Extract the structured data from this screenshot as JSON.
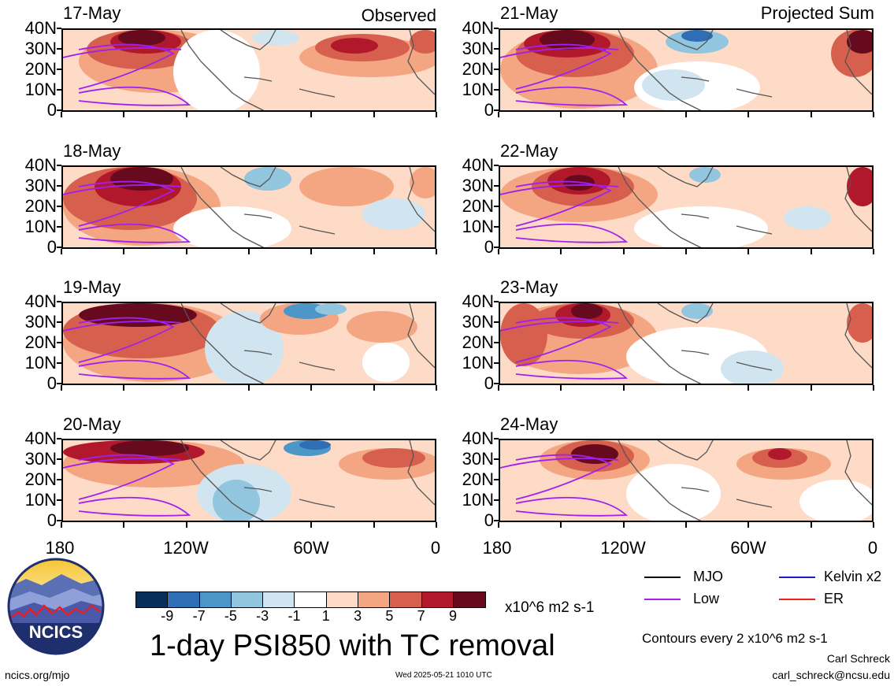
{
  "title": "1-day PSI850 with TC removal",
  "columns": [
    {
      "title": "Observed",
      "dates": [
        "17-May",
        "18-May",
        "19-May",
        "20-May"
      ]
    },
    {
      "title": "Projected Sum",
      "dates": [
        "21-May",
        "22-May",
        "23-May",
        "24-May"
      ]
    }
  ],
  "lat_labels": [
    "40N",
    "30N",
    "20N",
    "10N",
    "0"
  ],
  "lon_labels": [
    "180",
    "120W",
    "60W",
    "0"
  ],
  "legend": {
    "items": [
      {
        "label": "MJO",
        "color": "#000000"
      },
      {
        "label": "Kelvin x2",
        "color": "#1a1ac8"
      },
      {
        "label": "Low",
        "color": "#a020f0"
      },
      {
        "label": "ER",
        "color": "#e82020"
      }
    ],
    "contours": "Contours every 2 x10^6 m2 s-1"
  },
  "colorbar": {
    "colors": [
      "#0a2e5c",
      "#2f6db5",
      "#4d96c8",
      "#92c5de",
      "#d1e5f0",
      "#ffffff",
      "#fddbc7",
      "#f4a582",
      "#d6604d",
      "#b2182b",
      "#670a1e"
    ],
    "labels": [
      "-9",
      "-7",
      "-5",
      "-3",
      "-1",
      "1",
      "3",
      "5",
      "7",
      "9"
    ],
    "units": "x10^6 m2 s-1"
  },
  "logo": {
    "text": "NCICS"
  },
  "footer": {
    "url": "ncics.org/mjo",
    "timestamp": "Wed 2025-05-21 1010 UTC",
    "author": "Carl Schreck",
    "email": "carl_schreck@ncsu.edu"
  }
}
